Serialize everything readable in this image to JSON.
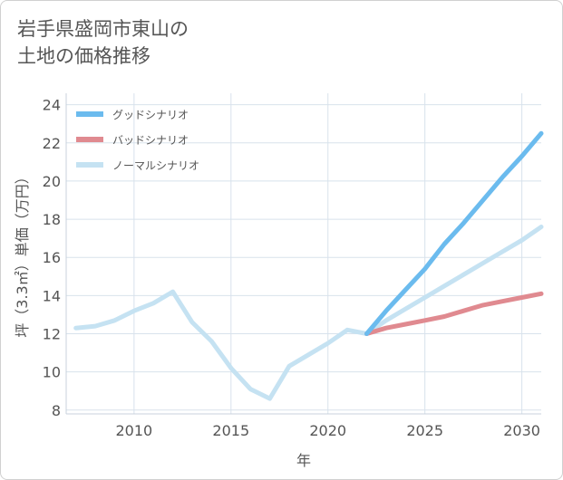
{
  "title": {
    "line1": "岩手県盛岡市東山の",
    "line2": "土地の価格推移"
  },
  "chart_data": {
    "type": "line",
    "title": "岩手県盛岡市東山の土地の価格推移",
    "xlabel": "年",
    "ylabel": "坪（3.3㎡）単価（万円）",
    "xlim": [
      2006.5,
      2031
    ],
    "ylim": [
      7.8,
      24.6
    ],
    "xticks": [
      2010,
      2015,
      2020,
      2025,
      2030
    ],
    "yticks": [
      8,
      10,
      12,
      14,
      16,
      18,
      20,
      22,
      24
    ],
    "grid": true,
    "legend_position": "top-left",
    "series": [
      {
        "name": "グッドシナリオ",
        "color": "#6bbbee",
        "x": [
          2022,
          2023,
          2024,
          2025,
          2026,
          2027,
          2028,
          2029,
          2030,
          2031
        ],
        "y": [
          12.0,
          13.2,
          14.3,
          15.4,
          16.7,
          17.8,
          19.0,
          20.2,
          21.3,
          22.5
        ]
      },
      {
        "name": "バッドシナリオ",
        "color": "#e08a90",
        "x": [
          2022,
          2023,
          2024,
          2025,
          2026,
          2027,
          2028,
          2029,
          2030,
          2031
        ],
        "y": [
          12.0,
          12.3,
          12.5,
          12.7,
          12.9,
          13.2,
          13.5,
          13.7,
          13.9,
          14.1
        ]
      },
      {
        "name": "ノーマルシナリオ",
        "color": "#c5e2f2",
        "x": [
          2007,
          2008,
          2009,
          2010,
          2011,
          2012,
          2013,
          2014,
          2015,
          2016,
          2017,
          2018,
          2019,
          2020,
          2021,
          2022,
          2023,
          2024,
          2025,
          2026,
          2027,
          2028,
          2029,
          2030,
          2031
        ],
        "y": [
          12.3,
          12.4,
          12.7,
          13.2,
          13.6,
          14.2,
          12.6,
          11.6,
          10.2,
          9.1,
          8.6,
          10.3,
          10.9,
          11.5,
          12.2,
          12.0,
          12.7,
          13.3,
          13.9,
          14.5,
          15.1,
          15.7,
          16.3,
          16.9,
          17.6
        ]
      }
    ]
  }
}
